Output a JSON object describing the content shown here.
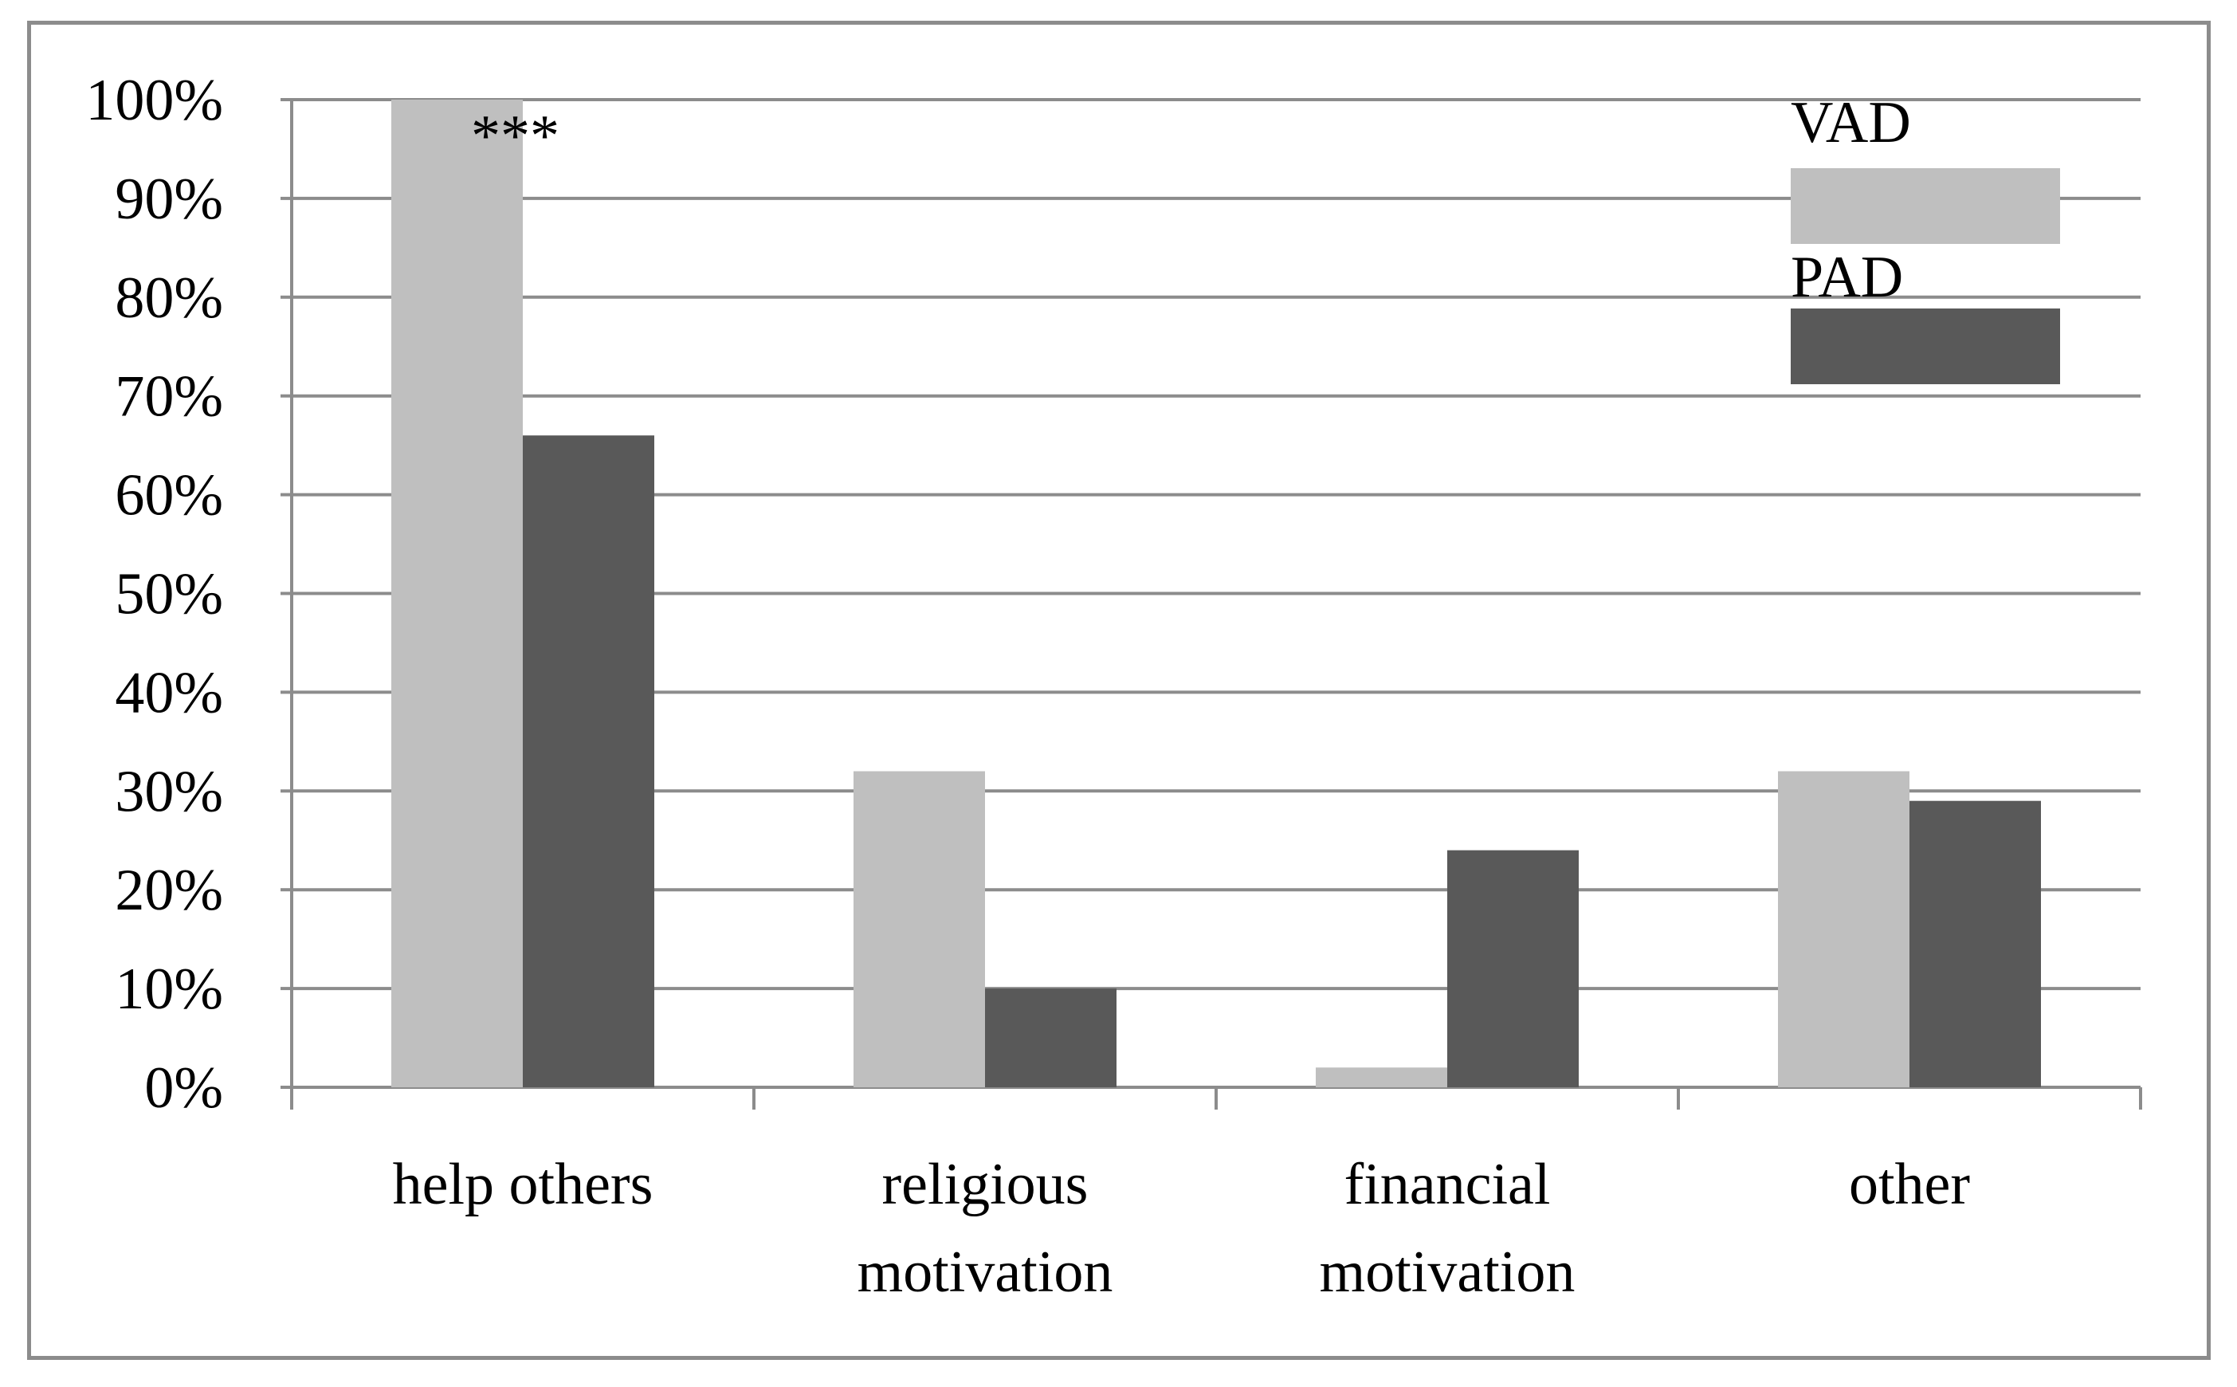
{
  "chart_data": {
    "type": "bar",
    "categories": [
      [
        "help others"
      ],
      [
        "religious",
        "motivation"
      ],
      [
        "financial",
        "motivation"
      ],
      [
        "other"
      ]
    ],
    "series": [
      {
        "name": "VAD",
        "color": "#bfbfbf",
        "values": [
          100,
          32,
          2,
          32
        ]
      },
      {
        "name": "PAD",
        "color": "#595959",
        "values": [
          66,
          10,
          24,
          29
        ]
      }
    ],
    "ylim": [
      0,
      100
    ],
    "yticks": [
      "0%",
      "10%",
      "20%",
      "30%",
      "40%",
      "50%",
      "60%",
      "70%",
      "80%",
      "90%",
      "100%"
    ],
    "title": "",
    "xlabel": "",
    "ylabel": "",
    "grid": true,
    "legend_position": "top-right",
    "annotations": [
      {
        "category_index": 0,
        "text": "***"
      }
    ]
  }
}
